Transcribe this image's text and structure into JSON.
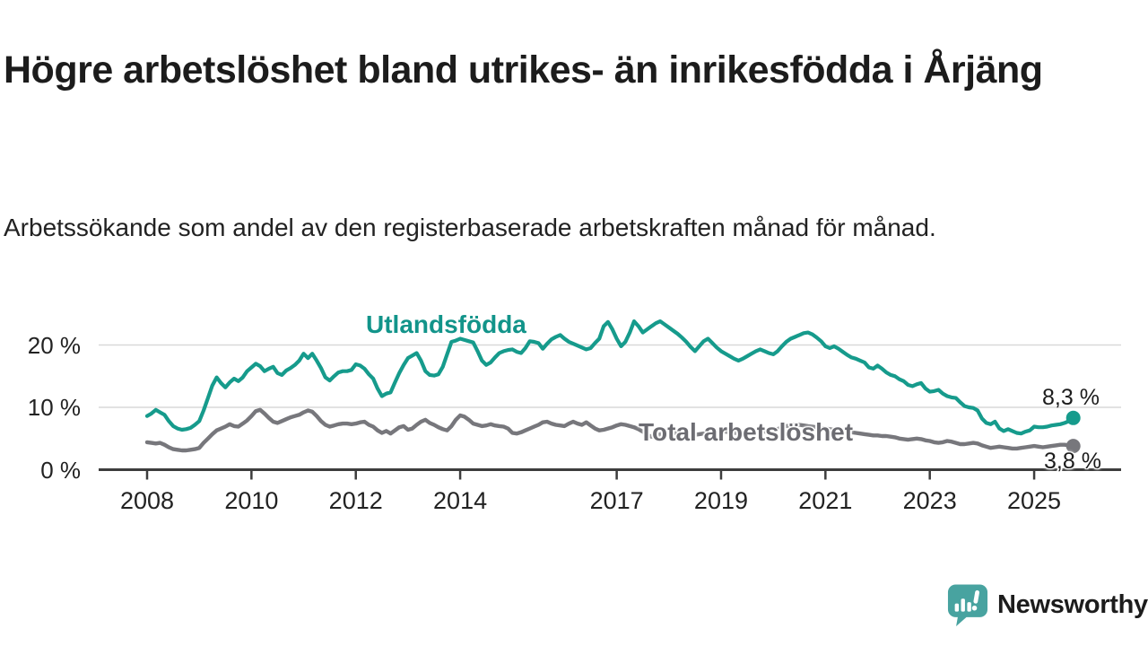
{
  "header": {
    "title": "Högre arbetslöshet bland utrikes- än inrikesfödda i Årjäng",
    "subtitle": "Arbetssökande som andel av den registerbaserade arbetskraften månad för månad."
  },
  "colors": {
    "accent_teal": "#169b8c",
    "line_gray": "#77777c",
    "gray_label": "#6c6c72",
    "text_dark": "#1c1c1c",
    "grid": "#d9d9d9",
    "axis": "#3d3d3d",
    "brand_teal": "#38939a",
    "brand_icon_teal": "#48a3a0"
  },
  "chart_data": {
    "type": "line",
    "unit": "%",
    "x_start_year": 2008,
    "x_step_months": 1,
    "x_end_label_period": "2025",
    "ylim": [
      0,
      25
    ],
    "grid": "horizontal",
    "legend_position": "inline-labels",
    "yticks": [
      {
        "value": 0,
        "label": "0 %"
      },
      {
        "value": 10,
        "label": "10 %"
      },
      {
        "value": 20,
        "label": "20 %"
      }
    ],
    "xticks": [
      2008,
      2010,
      2012,
      2014,
      2017,
      2019,
      2021,
      2023,
      2025
    ],
    "series": [
      {
        "id": "utlandsfodda",
        "name": "Utlandsfödda",
        "color": "#169b8c",
        "label_color": "#12948a",
        "width": 4.2,
        "end_label": "8,3 %",
        "end_value": 8.3,
        "values": [
          8.6,
          9.0,
          9.6,
          9.2,
          8.8,
          7.8,
          7.0,
          6.6,
          6.4,
          6.5,
          6.7,
          7.2,
          7.8,
          9.5,
          11.5,
          13.5,
          14.8,
          13.9,
          13.2,
          14.0,
          14.6,
          14.2,
          14.8,
          15.8,
          16.4,
          17.0,
          16.6,
          15.8,
          16.2,
          16.5,
          15.5,
          15.2,
          15.9,
          16.3,
          16.8,
          17.5,
          18.6,
          17.9,
          18.6,
          17.5,
          16.3,
          14.8,
          14.3,
          15.0,
          15.6,
          15.8,
          15.8,
          16.0,
          16.9,
          16.7,
          16.2,
          15.3,
          14.6,
          13.0,
          11.8,
          12.2,
          12.4,
          14.0,
          15.5,
          16.8,
          17.9,
          18.3,
          18.7,
          17.5,
          15.8,
          15.2,
          15.1,
          15.3,
          16.5,
          18.5,
          20.5,
          20.7,
          21.0,
          20.8,
          20.6,
          20.4,
          19.0,
          17.5,
          16.8,
          17.2,
          18.0,
          18.7,
          19.0,
          19.2,
          19.3,
          18.9,
          18.7,
          19.5,
          20.6,
          20.5,
          20.3,
          19.4,
          20.2,
          20.9,
          21.3,
          21.6,
          21.0,
          20.5,
          20.2,
          19.9,
          19.6,
          19.3,
          19.5,
          20.3,
          21.0,
          23.0,
          23.7,
          22.5,
          21.0,
          19.8,
          20.5,
          22.0,
          23.8,
          23.0,
          22.0,
          22.5,
          23.0,
          23.5,
          23.8,
          23.3,
          22.8,
          22.3,
          21.8,
          21.2,
          20.5,
          19.7,
          19.0,
          19.8,
          20.6,
          21.0,
          20.3,
          19.6,
          19.0,
          18.6,
          18.2,
          17.8,
          17.5,
          17.8,
          18.2,
          18.6,
          19.0,
          19.3,
          19.0,
          18.7,
          18.5,
          19.0,
          19.8,
          20.5,
          21.0,
          21.3,
          21.6,
          21.9,
          22.0,
          21.7,
          21.2,
          20.6,
          19.8,
          19.5,
          19.8,
          19.4,
          18.9,
          18.4,
          18.0,
          17.8,
          17.5,
          17.2,
          16.4,
          16.2,
          16.7,
          16.2,
          15.6,
          15.2,
          15.0,
          14.5,
          14.2,
          13.6,
          13.4,
          13.7,
          13.9,
          13.0,
          12.5,
          12.6,
          12.8,
          12.2,
          11.8,
          11.6,
          11.5,
          10.8,
          10.2,
          10.0,
          9.9,
          9.5,
          8.2,
          7.5,
          7.3,
          7.7,
          6.6,
          6.2,
          6.5,
          6.2,
          5.9,
          5.8,
          6.1,
          6.3,
          6.9,
          6.8,
          6.8,
          6.9,
          7.1,
          7.2,
          7.3,
          7.5,
          7.8,
          8.3
        ]
      },
      {
        "id": "total",
        "name": "Total arbetslöshet",
        "color": "#77777c",
        "label_color": "#6c6c72",
        "width": 4.4,
        "end_label": "3,8 %",
        "end_value": 3.8,
        "values": [
          4.4,
          4.3,
          4.2,
          4.3,
          4.0,
          3.6,
          3.3,
          3.2,
          3.1,
          3.1,
          3.2,
          3.3,
          3.5,
          4.3,
          5.0,
          5.7,
          6.3,
          6.6,
          6.9,
          7.3,
          7.0,
          6.9,
          7.4,
          7.9,
          8.6,
          9.4,
          9.6,
          9.0,
          8.3,
          7.7,
          7.5,
          7.8,
          8.1,
          8.4,
          8.6,
          8.8,
          9.2,
          9.5,
          9.3,
          8.6,
          7.8,
          7.2,
          6.9,
          7.1,
          7.3,
          7.4,
          7.4,
          7.3,
          7.4,
          7.6,
          7.7,
          7.2,
          6.9,
          6.3,
          5.9,
          6.2,
          5.8,
          6.3,
          6.8,
          7.0,
          6.4,
          6.6,
          7.2,
          7.7,
          8.0,
          7.5,
          7.2,
          6.8,
          6.5,
          6.3,
          7.0,
          8.0,
          8.7,
          8.5,
          8.0,
          7.4,
          7.2,
          7.0,
          7.1,
          7.3,
          7.1,
          7.0,
          6.9,
          6.6,
          5.9,
          5.8,
          6.0,
          6.3,
          6.6,
          6.9,
          7.2,
          7.6,
          7.7,
          7.4,
          7.2,
          7.1,
          7.0,
          7.4,
          7.7,
          7.4,
          7.2,
          7.6,
          7.1,
          6.6,
          6.3,
          6.4,
          6.6,
          6.8,
          7.1,
          7.3,
          7.2,
          7.0,
          6.8,
          6.5,
          6.1,
          5.6,
          5.3,
          5.4,
          5.7,
          5.9,
          6.0,
          5.9,
          5.8,
          5.7,
          5.7,
          5.6,
          5.6,
          5.7,
          5.8,
          5.9,
          6.0,
          6.0,
          6.1,
          6.1,
          6.0,
          5.9,
          5.9,
          5.8,
          5.8,
          5.9,
          6.0,
          6.1,
          6.1,
          6.2,
          6.3,
          6.5,
          6.8,
          7.0,
          7.1,
          7.2,
          7.2,
          7.1,
          7.0,
          6.9,
          6.8,
          6.7,
          6.6,
          6.5,
          6.4,
          6.3,
          6.2,
          6.1,
          6.0,
          5.9,
          5.8,
          5.7,
          5.6,
          5.5,
          5.5,
          5.4,
          5.4,
          5.3,
          5.2,
          5.0,
          4.9,
          4.8,
          4.9,
          5.0,
          4.9,
          4.7,
          4.6,
          4.4,
          4.3,
          4.4,
          4.6,
          4.5,
          4.3,
          4.1,
          4.1,
          4.2,
          4.3,
          4.2,
          3.9,
          3.7,
          3.5,
          3.6,
          3.7,
          3.6,
          3.5,
          3.4,
          3.4,
          3.5,
          3.6,
          3.7,
          3.8,
          3.7,
          3.6,
          3.7,
          3.8,
          3.9,
          4.0,
          4.0,
          3.9,
          3.8
        ]
      }
    ]
  },
  "footer": {
    "brand": "Newsworthy",
    "logo_icon": "speech-bubble-bar-chart-icon"
  }
}
